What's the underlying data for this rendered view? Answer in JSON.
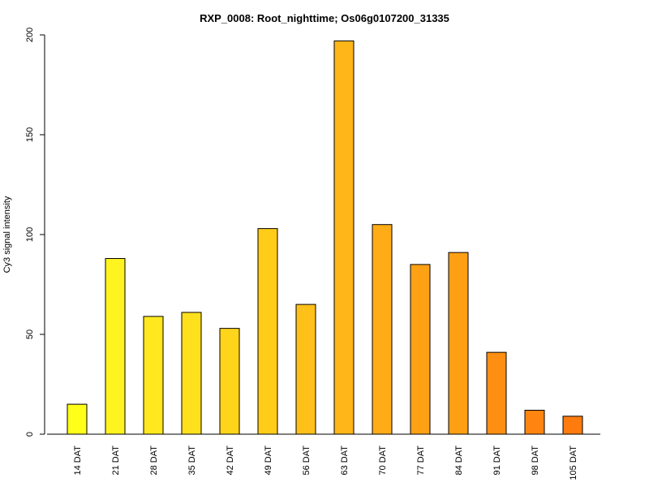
{
  "chart_data": {
    "type": "bar",
    "title": "RXP_0008: Root_nighttime; Os06g0107200_31335",
    "xlabel": "",
    "ylabel": "Cy3 signal intensity",
    "ylim": [
      0,
      200
    ],
    "y_ticks": [
      0,
      50,
      100,
      150,
      200
    ],
    "grid": false,
    "categories": [
      "14 DAT",
      "21 DAT",
      "28 DAT",
      "35 DAT",
      "42 DAT",
      "49 DAT",
      "56 DAT",
      "63 DAT",
      "70 DAT",
      "77 DAT",
      "84 DAT",
      "91 DAT",
      "98 DAT",
      "105 DAT"
    ],
    "values": [
      15,
      88,
      59,
      61,
      53,
      103,
      65,
      197,
      105,
      85,
      91,
      41,
      12,
      9
    ],
    "colors": [
      "#ffff1a",
      "#fff41f",
      "#ffe91e",
      "#ffe01d",
      "#ffd51c",
      "#ffcc1a",
      "#ffc119",
      "#ffb618",
      "#ffac16",
      "#ffa115",
      "#ff9f14",
      "#ff8f12",
      "#ff8510",
      "#ff7b0e"
    ]
  }
}
